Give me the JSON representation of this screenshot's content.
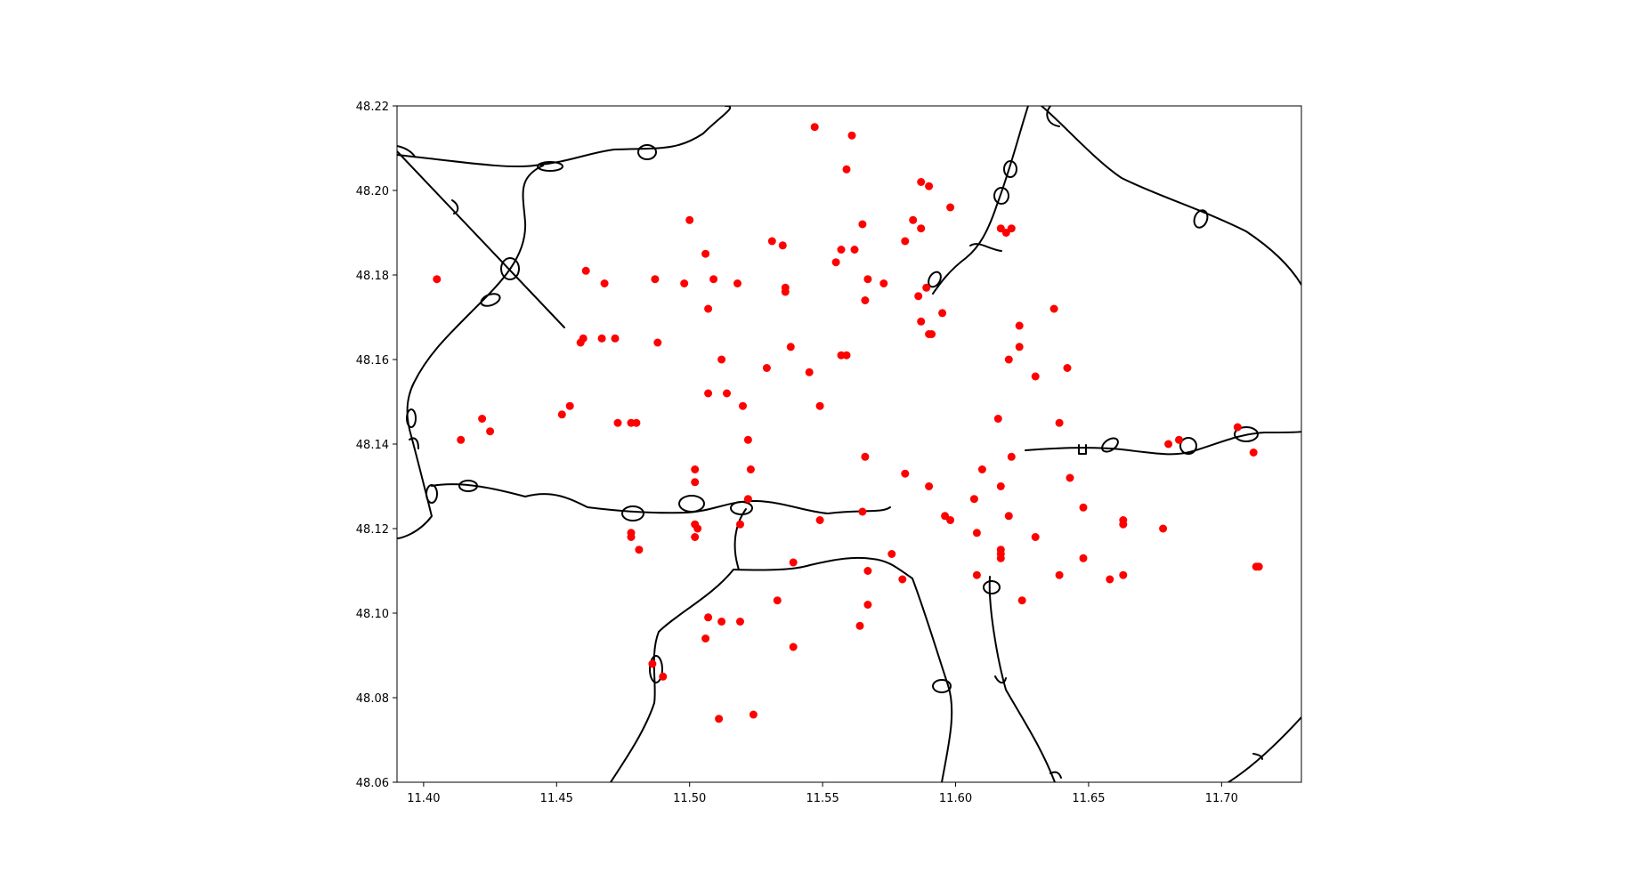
{
  "chart_data": {
    "type": "scatter",
    "title": "",
    "xlabel": "",
    "ylabel": "",
    "xlim": [
      11.39,
      11.73
    ],
    "ylim": [
      48.06,
      48.22
    ],
    "grid": false,
    "x_ticks": [
      "11.40",
      "11.45",
      "11.50",
      "11.55",
      "11.60",
      "11.65",
      "11.70"
    ],
    "y_ticks": [
      "48.06",
      "48.08",
      "48.10",
      "48.12",
      "48.14",
      "48.16",
      "48.18",
      "48.20",
      "48.22"
    ],
    "point_color": "#ff0000",
    "line_color": "#000000",
    "points": [
      [
        11.547,
        48.215
      ],
      [
        11.561,
        48.213
      ],
      [
        11.559,
        48.205
      ],
      [
        11.587,
        48.202
      ],
      [
        11.59,
        48.201
      ],
      [
        11.598,
        48.196
      ],
      [
        11.584,
        48.193
      ],
      [
        11.587,
        48.191
      ],
      [
        11.565,
        48.192
      ],
      [
        11.5,
        48.193
      ],
      [
        11.617,
        48.191
      ],
      [
        11.619,
        48.19
      ],
      [
        11.621,
        48.191
      ],
      [
        11.531,
        48.188
      ],
      [
        11.535,
        48.187
      ],
      [
        11.581,
        48.188
      ],
      [
        11.557,
        48.186
      ],
      [
        11.562,
        48.186
      ],
      [
        11.506,
        48.185
      ],
      [
        11.555,
        48.183
      ],
      [
        11.461,
        48.181
      ],
      [
        11.405,
        48.179
      ],
      [
        11.468,
        48.178
      ],
      [
        11.487,
        48.179
      ],
      [
        11.498,
        48.178
      ],
      [
        11.509,
        48.179
      ],
      [
        11.518,
        48.178
      ],
      [
        11.567,
        48.179
      ],
      [
        11.573,
        48.178
      ],
      [
        11.589,
        48.177
      ],
      [
        11.536,
        48.177
      ],
      [
        11.536,
        48.176
      ],
      [
        11.586,
        48.175
      ],
      [
        11.566,
        48.174
      ],
      [
        11.637,
        48.172
      ],
      [
        11.507,
        48.172
      ],
      [
        11.595,
        48.171
      ],
      [
        11.587,
        48.169
      ],
      [
        11.624,
        48.168
      ],
      [
        11.59,
        48.166
      ],
      [
        11.591,
        48.166
      ],
      [
        11.459,
        48.164
      ],
      [
        11.46,
        48.165
      ],
      [
        11.467,
        48.165
      ],
      [
        11.472,
        48.165
      ],
      [
        11.488,
        48.164
      ],
      [
        11.538,
        48.163
      ],
      [
        11.624,
        48.163
      ],
      [
        11.557,
        48.161
      ],
      [
        11.559,
        48.161
      ],
      [
        11.512,
        48.16
      ],
      [
        11.62,
        48.16
      ],
      [
        11.529,
        48.158
      ],
      [
        11.545,
        48.157
      ],
      [
        11.642,
        48.158
      ],
      [
        11.63,
        48.156
      ],
      [
        11.507,
        48.152
      ],
      [
        11.514,
        48.152
      ],
      [
        11.549,
        48.149
      ],
      [
        11.52,
        48.149
      ],
      [
        11.455,
        48.149
      ],
      [
        11.452,
        48.147
      ],
      [
        11.422,
        48.146
      ],
      [
        11.473,
        48.145
      ],
      [
        11.478,
        48.145
      ],
      [
        11.48,
        48.145
      ],
      [
        11.616,
        48.146
      ],
      [
        11.639,
        48.145
      ],
      [
        11.706,
        48.144
      ],
      [
        11.425,
        48.143
      ],
      [
        11.414,
        48.141
      ],
      [
        11.522,
        48.141
      ],
      [
        11.68,
        48.14
      ],
      [
        11.684,
        48.141
      ],
      [
        11.712,
        48.138
      ],
      [
        11.566,
        48.137
      ],
      [
        11.621,
        48.137
      ],
      [
        11.502,
        48.134
      ],
      [
        11.523,
        48.134
      ],
      [
        11.61,
        48.134
      ],
      [
        11.581,
        48.133
      ],
      [
        11.643,
        48.132
      ],
      [
        11.502,
        48.131
      ],
      [
        11.59,
        48.13
      ],
      [
        11.617,
        48.13
      ],
      [
        11.522,
        48.127
      ],
      [
        11.607,
        48.127
      ],
      [
        11.648,
        48.125
      ],
      [
        11.565,
        48.124
      ],
      [
        11.596,
        48.123
      ],
      [
        11.62,
        48.123
      ],
      [
        11.598,
        48.122
      ],
      [
        11.549,
        48.122
      ],
      [
        11.663,
        48.122
      ],
      [
        11.663,
        48.121
      ],
      [
        11.519,
        48.121
      ],
      [
        11.502,
        48.121
      ],
      [
        11.503,
        48.12
      ],
      [
        11.678,
        48.12
      ],
      [
        11.608,
        48.119
      ],
      [
        11.478,
        48.119
      ],
      [
        11.478,
        48.118
      ],
      [
        11.502,
        48.118
      ],
      [
        11.63,
        48.118
      ],
      [
        11.481,
        48.115
      ],
      [
        11.617,
        48.115
      ],
      [
        11.576,
        48.114
      ],
      [
        11.617,
        48.114
      ],
      [
        11.617,
        48.113
      ],
      [
        11.648,
        48.113
      ],
      [
        11.539,
        48.112
      ],
      [
        11.713,
        48.111
      ],
      [
        11.714,
        48.111
      ],
      [
        11.567,
        48.11
      ],
      [
        11.608,
        48.109
      ],
      [
        11.639,
        48.109
      ],
      [
        11.663,
        48.109
      ],
      [
        11.658,
        48.108
      ],
      [
        11.58,
        48.108
      ],
      [
        11.533,
        48.103
      ],
      [
        11.625,
        48.103
      ],
      [
        11.567,
        48.102
      ],
      [
        11.507,
        48.099
      ],
      [
        11.512,
        48.098
      ],
      [
        11.519,
        48.098
      ],
      [
        11.564,
        48.097
      ],
      [
        11.506,
        48.094
      ],
      [
        11.539,
        48.092
      ],
      [
        11.486,
        48.088
      ],
      [
        11.49,
        48.085
      ],
      [
        11.511,
        48.075
      ],
      [
        11.524,
        48.076
      ]
    ]
  }
}
